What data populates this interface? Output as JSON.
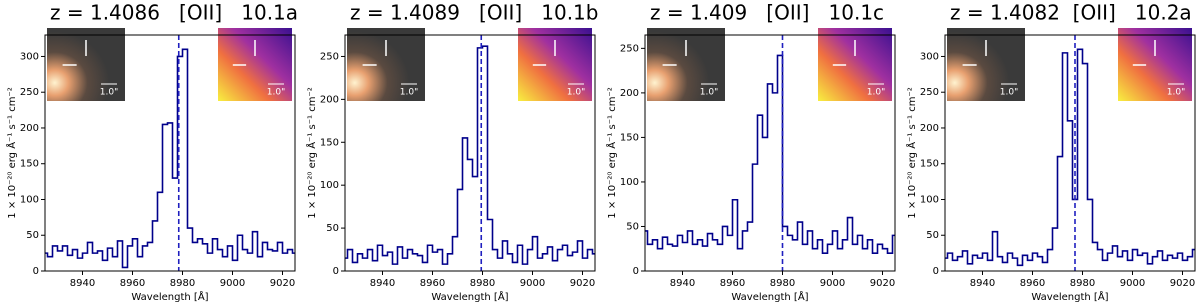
{
  "chart_data": [
    {
      "type": "step",
      "title": "z = 1.4086   [OII]   10.1a",
      "xlabel": "Wavelength [Å]",
      "ylabel": "1 × 10⁻²⁰ erg Å⁻¹ s⁻¹ cm⁻²",
      "color": "#00008b",
      "x": [
        8925,
        8927,
        8929,
        8931,
        8933,
        8935,
        8937,
        8939,
        8941,
        8943,
        8945,
        8947,
        8949,
        8951,
        8953,
        8955,
        8957,
        8959,
        8961,
        8963,
        8965,
        8967,
        8969,
        8971,
        8973,
        8975,
        8977,
        8979,
        8981,
        8983,
        8985,
        8987,
        8989,
        8991,
        8993,
        8995,
        8997,
        8999,
        9001,
        9003,
        9005,
        9007,
        9009,
        9011,
        9013,
        9015,
        9017,
        9019,
        9021,
        9023,
        9025
      ],
      "values": [
        25,
        20,
        35,
        28,
        35,
        22,
        30,
        18,
        25,
        40,
        25,
        28,
        15,
        32,
        20,
        42,
        5,
        35,
        45,
        20,
        35,
        40,
        70,
        110,
        205,
        207,
        130,
        300,
        310,
        60,
        40,
        45,
        38,
        25,
        45,
        30,
        20,
        35,
        15,
        50,
        30,
        25,
        55,
        20,
        40,
        30,
        28,
        40,
        25,
        30,
        25
      ],
      "xlim": [
        8925,
        9025
      ],
      "ylim": [
        0,
        330
      ],
      "xticks": [
        8940,
        8960,
        8980,
        9000,
        9020
      ],
      "yticks": [
        0,
        50,
        100,
        150,
        200,
        250,
        300
      ],
      "redshift_line": 8978.5,
      "redshift_line_color": "#1f1fbf",
      "inset_labels": [
        "1.0\"",
        "1.0\""
      ]
    },
    {
      "type": "step",
      "title": "z = 1.4089   [OII]   10.1b",
      "xlabel": "Wavelength [Å]",
      "ylabel": "1 × 10⁻²⁰ erg Å⁻¹ s⁻¹ cm⁻²",
      "color": "#00008b",
      "x": [
        8925,
        8927,
        8929,
        8931,
        8933,
        8935,
        8937,
        8939,
        8941,
        8943,
        8945,
        8947,
        8949,
        8951,
        8953,
        8955,
        8957,
        8959,
        8961,
        8963,
        8965,
        8967,
        8969,
        8971,
        8973,
        8975,
        8977,
        8979,
        8981,
        8983,
        8985,
        8987,
        8989,
        8991,
        8993,
        8995,
        8997,
        8999,
        9001,
        9003,
        9005,
        9007,
        9009,
        9011,
        9013,
        9015,
        9017,
        9019,
        9021,
        9023,
        9025
      ],
      "values": [
        15,
        25,
        10,
        20,
        15,
        25,
        12,
        30,
        18,
        22,
        8,
        28,
        15,
        25,
        20,
        18,
        10,
        30,
        22,
        25,
        8,
        20,
        40,
        95,
        155,
        130,
        110,
        260,
        262,
        60,
        25,
        15,
        35,
        20,
        10,
        30,
        8,
        25,
        40,
        15,
        20,
        28,
        12,
        25,
        30,
        18,
        22,
        35,
        15,
        25,
        20
      ],
      "xlim": [
        8925,
        9025
      ],
      "ylim": [
        0,
        275
      ],
      "xticks": [
        8940,
        8960,
        8980,
        9000,
        9020
      ],
      "yticks": [
        0,
        50,
        100,
        150,
        200,
        250
      ],
      "redshift_line": 8979.5,
      "redshift_line_color": "#1f1fbf",
      "inset_labels": [
        "1.0\"",
        "1.0\""
      ]
    },
    {
      "type": "step",
      "title": "z = 1.409   [OII]   10.1c",
      "xlabel": "Wavelength [Å]",
      "ylabel": "1 × 10⁻²⁰ erg Å⁻¹ s⁻¹ cm⁻²",
      "color": "#00008b",
      "x": [
        8925,
        8927,
        8929,
        8931,
        8933,
        8935,
        8937,
        8939,
        8941,
        8943,
        8945,
        8947,
        8949,
        8951,
        8953,
        8955,
        8957,
        8959,
        8961,
        8963,
        8965,
        8967,
        8969,
        8971,
        8973,
        8975,
        8977,
        8979,
        8981,
        8983,
        8985,
        8987,
        8989,
        8991,
        8993,
        8995,
        8997,
        8999,
        9001,
        9003,
        9005,
        9007,
        9009,
        9011,
        9013,
        9015,
        9017,
        9019,
        9021,
        9023,
        9025
      ],
      "values": [
        45,
        30,
        35,
        25,
        38,
        30,
        28,
        40,
        32,
        45,
        30,
        35,
        28,
        42,
        35,
        30,
        50,
        40,
        80,
        25,
        45,
        55,
        120,
        175,
        150,
        210,
        200,
        242,
        50,
        40,
        35,
        55,
        30,
        45,
        25,
        35,
        20,
        30,
        45,
        25,
        35,
        60,
        30,
        40,
        25,
        35,
        20,
        30,
        25,
        20,
        40
      ],
      "xlim": [
        8925,
        9025
      ],
      "ylim": [
        0,
        265
      ],
      "xticks": [
        8940,
        8960,
        8980,
        9000,
        9020
      ],
      "yticks": [
        0,
        50,
        100,
        150,
        200,
        250
      ],
      "redshift_line": 8980,
      "redshift_line_color": "#1f1fbf",
      "inset_labels": [
        "1.0\"",
        "1.0\""
      ]
    },
    {
      "type": "step",
      "title": "z = 1.4082  [OII]   10.2a",
      "xlabel": "Wavelength [Å]",
      "ylabel": "1 × 10⁻²⁰ erg Å⁻¹ s⁻¹ cm⁻²",
      "color": "#00008b",
      "x": [
        8925,
        8927,
        8929,
        8931,
        8933,
        8935,
        8937,
        8939,
        8941,
        8943,
        8945,
        8947,
        8949,
        8951,
        8953,
        8955,
        8957,
        8959,
        8961,
        8963,
        8965,
        8967,
        8969,
        8971,
        8973,
        8975,
        8977,
        8979,
        8981,
        8983,
        8985,
        8987,
        8989,
        8991,
        8993,
        8995,
        8997,
        8999,
        9001,
        9003,
        9005,
        9007,
        9009,
        9011,
        9013,
        9015,
        9017,
        9019,
        9021,
        9023,
        9025
      ],
      "values": [
        18,
        25,
        15,
        20,
        28,
        10,
        22,
        18,
        25,
        15,
        55,
        20,
        12,
        25,
        18,
        8,
        22,
        15,
        25,
        20,
        12,
        30,
        60,
        160,
        305,
        210,
        100,
        310,
        290,
        100,
        40,
        30,
        15,
        25,
        35,
        20,
        28,
        15,
        30,
        22,
        25,
        10,
        20,
        28,
        15,
        22,
        18,
        25,
        15,
        20,
        30
      ],
      "xlim": [
        8925,
        9025
      ],
      "ylim": [
        0,
        330
      ],
      "xticks": [
        8940,
        8960,
        8980,
        9000,
        9020
      ],
      "yticks": [
        0,
        50,
        100,
        150,
        200,
        250,
        300
      ],
      "redshift_line": 8977,
      "redshift_line_color": "#1f1fbf",
      "inset_labels": [
        "1.0\"",
        "1.0\""
      ]
    }
  ]
}
